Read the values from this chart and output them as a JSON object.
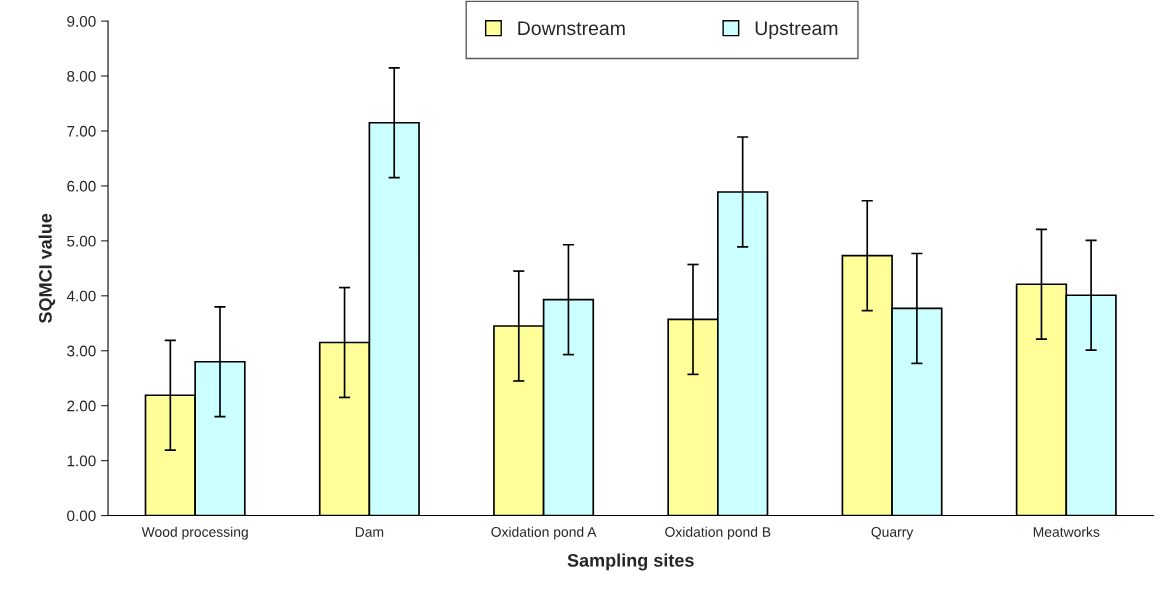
{
  "chart_data": {
    "type": "bar",
    "xlabel": "Sampling sites",
    "ylabel": "SQMCI value",
    "categories": [
      "Wood processing",
      "Dam",
      "Oxidation pond A",
      "Oxidation pond B",
      "Quarry",
      "Meatworks"
    ],
    "series": [
      {
        "name": "Downstream",
        "color": "#ffff99",
        "values": [
          2.19,
          3.15,
          3.45,
          3.57,
          4.73,
          4.21
        ],
        "errors": [
          1,
          1,
          1,
          1,
          1,
          1
        ]
      },
      {
        "name": "Upstream",
        "color": "#ccffff",
        "values": [
          2.8,
          7.15,
          3.93,
          5.89,
          3.77,
          4.01
        ],
        "errors": [
          1,
          1,
          1,
          1,
          1,
          1
        ]
      }
    ],
    "ylim": [
      0,
      9
    ],
    "yticks": [
      {
        "value": 0,
        "label": "0.00"
      },
      {
        "value": 1,
        "label": "1.00"
      },
      {
        "value": 2,
        "label": "2.00"
      },
      {
        "value": 3,
        "label": "3.00"
      },
      {
        "value": 4,
        "label": "4.00"
      },
      {
        "value": 5,
        "label": "5.00"
      },
      {
        "value": 6,
        "label": "6.00"
      },
      {
        "value": 7,
        "label": "7.00"
      },
      {
        "value": 8,
        "label": "8.00"
      },
      {
        "value": 9,
        "label": "9.00"
      }
    ],
    "grid": false,
    "legend": "top"
  }
}
